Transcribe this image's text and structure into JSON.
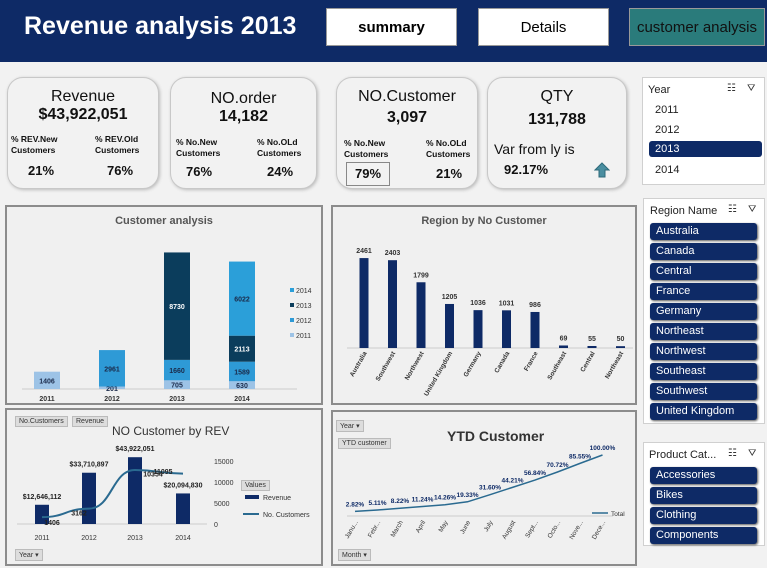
{
  "header": {
    "title": "Revenue analysis 2013",
    "buttons": [
      "summary",
      "Details",
      "customer analysis"
    ]
  },
  "kpis": {
    "revenue": {
      "title": "Revenue",
      "value": "$43,922,051",
      "l1": "% REV.New",
      "l2": "Customers",
      "r1": "% REV.Old",
      "r2": "Customers",
      "left": "21%",
      "right": "76%"
    },
    "orders": {
      "title": "NO.order",
      "value": "14,182",
      "l1": "% No.New",
      "l2": "Customers",
      "r1": "% No.OLd",
      "r2": "Customers",
      "left": "76%",
      "right": "24%"
    },
    "customers": {
      "title": "NO.Customer",
      "value": "3,097",
      "l1": "% No.New",
      "l2": "Customers",
      "r1": "% No.OLd",
      "r2": "Customers",
      "left": "79%",
      "right": "21%"
    },
    "qty": {
      "title": "QTY",
      "value": "131,788",
      "var_label": "Var from ly is",
      "var_value": "92.17%"
    }
  },
  "year_slicer": {
    "title": "Year",
    "items": [
      "2011",
      "2012",
      "2013",
      "2014"
    ],
    "selected": "2013"
  },
  "region_slicer": {
    "title": "Region Name",
    "items": [
      "Australia",
      "Canada",
      "Central",
      "France",
      "Germany",
      "Northeast",
      "Northwest",
      "Southeast",
      "Southwest",
      "United Kingdom"
    ]
  },
  "product_slicer": {
    "title": "Product Cat...",
    "items": [
      "Accessories",
      "Bikes",
      "Clothing",
      "Components"
    ]
  },
  "tags": {
    "no_customers": "No.Customers",
    "revenue": "Revenue",
    "year": "Year",
    "ytd": "YTD customer",
    "month": "Month",
    "values": "Values"
  },
  "chart_data": [
    {
      "type": "bar",
      "title": "Customer analysis",
      "categories": [
        "2011",
        "2012",
        "2013",
        "2014"
      ],
      "legend": [
        "2014",
        "2013",
        "2012",
        "2011"
      ],
      "colors": {
        "2011": "#9dc3e6",
        "2012": "#2e9ad6",
        "2013": "#0b3d5c",
        "2014": "#2b9fd9"
      },
      "stacks": [
        [
          {
            "series": "2011",
            "value": 1406
          }
        ],
        [
          {
            "series": "2011",
            "value": 201
          },
          {
            "series": "2012",
            "value": 2961
          }
        ],
        [
          {
            "series": "2011",
            "value": 705
          },
          {
            "series": "2012",
            "value": 1660
          },
          {
            "series": "2013",
            "value": 8730
          }
        ],
        [
          {
            "series": "2011",
            "value": 630
          },
          {
            "series": "2012",
            "value": 1589
          },
          {
            "series": "2013",
            "value": 2113
          },
          {
            "series": "2014",
            "value": 6022
          }
        ]
      ]
    },
    {
      "type": "bar",
      "title": "Region by No Customer",
      "categories": [
        "Australia",
        "Southwest",
        "Northwest",
        "United Kingdom",
        "Germany",
        "Canada",
        "France",
        "Southeast",
        "Central",
        "Northeast"
      ],
      "values": [
        2461,
        2403,
        1799,
        1205,
        1036,
        1031,
        986,
        69,
        55,
        50
      ]
    },
    {
      "type": "bar",
      "title": "NO Customer by REV",
      "categories": [
        "2011",
        "2012",
        "2013",
        "2014"
      ],
      "series": [
        {
          "name": "Revenue",
          "values": [
            12646112,
            33710897,
            43922051,
            20094830
          ],
          "labels": [
            "$12,646,112",
            "$33,710,897",
            "$43,922,051",
            "$20,094,830"
          ]
        },
        {
          "name": "No. Customers",
          "values": [
            1406,
            3162,
            11095,
            10354
          ],
          "labels": [
            "1406",
            "3162",
            "11095",
            "10354"
          ]
        }
      ],
      "y2_ticks": [
        "15000",
        "10000",
        "5000",
        "0"
      ]
    },
    {
      "type": "line",
      "title": "YTD Customer",
      "categories": [
        "January",
        "February",
        "March",
        "April",
        "May",
        "June",
        "July",
        "August",
        "September",
        "October",
        "November",
        "December"
      ],
      "values": [
        2.82,
        5.11,
        8.22,
        11.24,
        14.26,
        19.33,
        31.6,
        44.21,
        56.84,
        70.72,
        85.55,
        100.0
      ],
      "labels": [
        "2.82%",
        "5.11%",
        "8.22%",
        "11.24%",
        "14.26%",
        "19.33%",
        "31.60%",
        "44.21%",
        "56.84%",
        "70.72%",
        "85.55%",
        "100.00%"
      ],
      "tick_labels": [
        "Janu...",
        "Febr...",
        "March",
        "April",
        "May",
        "June",
        "July",
        "August",
        "Sept...",
        "Octo...",
        "Nove...",
        "Dece..."
      ],
      "legend": "Total"
    }
  ]
}
